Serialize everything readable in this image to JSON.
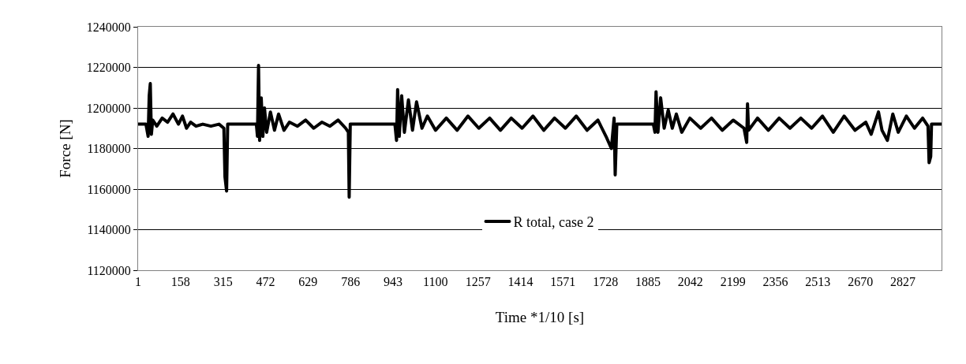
{
  "chart_data": {
    "type": "line",
    "xlabel": "Time *1/10 [s]",
    "ylabel": "Force [N]",
    "xlim": [
      1,
      2970
    ],
    "xticks": [
      1,
      158,
      315,
      472,
      629,
      786,
      943,
      1100,
      1257,
      1414,
      1571,
      1728,
      1885,
      2042,
      2199,
      2356,
      2513,
      2670,
      2827
    ],
    "ylim": [
      1120000,
      1240000
    ],
    "yticks": [
      1120000,
      1140000,
      1160000,
      1180000,
      1200000,
      1220000,
      1240000
    ],
    "grid": "y",
    "legend": "bottom",
    "marker": "none",
    "line_style": "solid",
    "x": [
      1,
      30,
      38,
      42,
      46,
      50,
      55,
      70,
      90,
      110,
      130,
      150,
      165,
      180,
      195,
      215,
      240,
      270,
      300,
      318,
      322,
      328,
      332,
      360,
      400,
      438,
      442,
      446,
      450,
      456,
      462,
      468,
      476,
      490,
      505,
      520,
      540,
      560,
      590,
      620,
      650,
      680,
      710,
      740,
      768,
      778,
      781,
      785,
      830,
      900,
      950,
      956,
      960,
      966,
      975,
      985,
      1000,
      1015,
      1030,
      1050,
      1070,
      1100,
      1140,
      1180,
      1220,
      1260,
      1300,
      1340,
      1380,
      1420,
      1460,
      1500,
      1540,
      1580,
      1620,
      1660,
      1700,
      1730,
      1750,
      1760,
      1764,
      1770,
      1830,
      1905,
      1911,
      1915,
      1922,
      1932,
      1945,
      1960,
      1975,
      1990,
      2010,
      2040,
      2080,
      2120,
      2160,
      2200,
      2240,
      2250,
      2253,
      2257,
      2290,
      2330,
      2370,
      2410,
      2450,
      2490,
      2530,
      2570,
      2610,
      2650,
      2690,
      2710,
      2737,
      2750,
      2770,
      2790,
      2810,
      2840,
      2870,
      2900,
      2920,
      2924,
      2930,
      2933,
      2970
    ],
    "series": [
      {
        "name": "R total, case 2",
        "color": "#000000",
        "values": [
          1192000,
          1192000,
          1186000,
          1206000,
          1212000,
          1187000,
          1194000,
          1191000,
          1195000,
          1193000,
          1197000,
          1192000,
          1196000,
          1190000,
          1193000,
          1191000,
          1192000,
          1191000,
          1192000,
          1190000,
          1166000,
          1159000,
          1192000,
          1192000,
          1192000,
          1192000,
          1186000,
          1221000,
          1184000,
          1205000,
          1186000,
          1200000,
          1188000,
          1198000,
          1189000,
          1197000,
          1189000,
          1193000,
          1191000,
          1194000,
          1190000,
          1193000,
          1191000,
          1194000,
          1190000,
          1188000,
          1156000,
          1192000,
          1192000,
          1192000,
          1192000,
          1184000,
          1209000,
          1186000,
          1206000,
          1188000,
          1204000,
          1189000,
          1203000,
          1190000,
          1196000,
          1189000,
          1195000,
          1189000,
          1196000,
          1190000,
          1195000,
          1189000,
          1195000,
          1190000,
          1196000,
          1189000,
          1195000,
          1190000,
          1196000,
          1189000,
          1194000,
          1186000,
          1180000,
          1195000,
          1167000,
          1192000,
          1192000,
          1192000,
          1188000,
          1208000,
          1188000,
          1205000,
          1190000,
          1199000,
          1190000,
          1197000,
          1188000,
          1195000,
          1190000,
          1195000,
          1189000,
          1194000,
          1190000,
          1183000,
          1202000,
          1189000,
          1195000,
          1189000,
          1195000,
          1190000,
          1195000,
          1190000,
          1196000,
          1188000,
          1196000,
          1189000,
          1193000,
          1187000,
          1198000,
          1189000,
          1184000,
          1197000,
          1188000,
          1196000,
          1190000,
          1195000,
          1191000,
          1173000,
          1176000,
          1192000,
          1192000
        ]
      }
    ]
  }
}
